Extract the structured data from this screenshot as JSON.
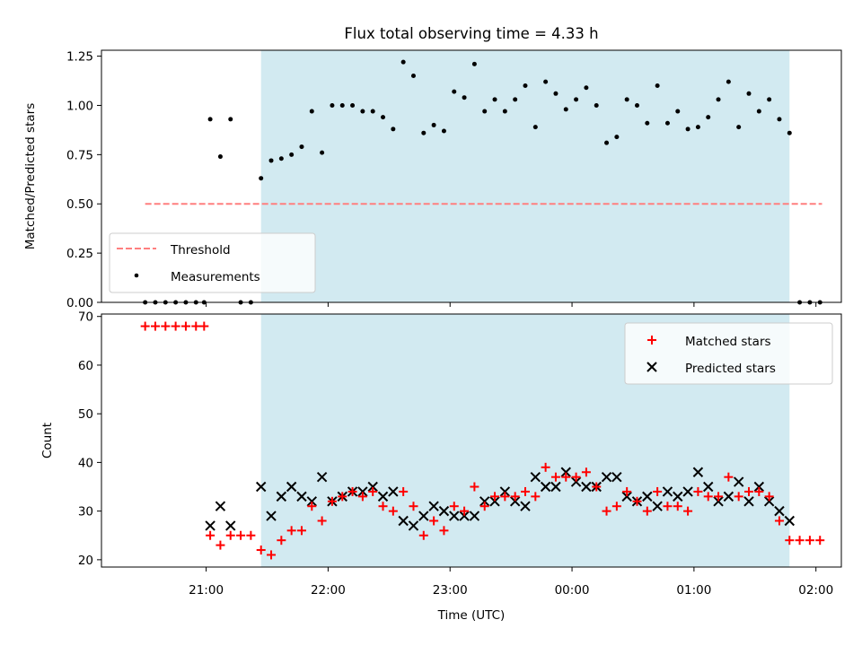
{
  "chart_data": [
    {
      "type": "scatter",
      "title": "Flux total observing time = 4.33 h",
      "xlabel": "",
      "ylabel": "Matched/Predicted stars",
      "ylim": [
        0,
        1.28
      ],
      "yticks": [
        0.0,
        0.25,
        0.5,
        0.75,
        1.0,
        1.25
      ],
      "ytick_labels": [
        "0.00",
        "0.25",
        "0.50",
        "0.75",
        "1.00",
        "1.25"
      ],
      "grid": false,
      "legend_position": "lower-left",
      "shaded_span": {
        "start": "21:27",
        "end": "01:47",
        "color": "#add8e6"
      },
      "series": [
        {
          "name": "Threshold",
          "style": "dashed-line",
          "color": "#ff7f7f",
          "x": [
            "20:30",
            "02:03"
          ],
          "y": [
            0.5,
            0.5
          ]
        },
        {
          "name": "Measurements",
          "style": "dot",
          "color": "#000000",
          "x": [
            "20:30",
            "20:35",
            "20:40",
            "20:45",
            "20:50",
            "20:55",
            "20:59",
            "21:02",
            "21:07",
            "21:12",
            "21:17",
            "21:22",
            "21:27",
            "21:32",
            "21:37",
            "21:42",
            "21:47",
            "21:52",
            "21:57",
            "22:02",
            "22:07",
            "22:12",
            "22:17",
            "22:22",
            "22:27",
            "22:32",
            "22:37",
            "22:42",
            "22:47",
            "22:52",
            "22:57",
            "23:02",
            "23:07",
            "23:12",
            "23:17",
            "23:22",
            "23:27",
            "23:32",
            "23:37",
            "23:42",
            "23:47",
            "23:52",
            "23:57",
            "00:02",
            "00:07",
            "00:12",
            "00:17",
            "00:22",
            "00:27",
            "00:32",
            "00:37",
            "00:42",
            "00:47",
            "00:52",
            "00:57",
            "01:02",
            "01:07",
            "01:12",
            "01:17",
            "01:22",
            "01:27",
            "01:32",
            "01:37",
            "01:42",
            "01:47",
            "01:52",
            "01:57",
            "02:02"
          ],
          "y": [
            0,
            0,
            0,
            0,
            0,
            0,
            0,
            0.93,
            0.74,
            0.93,
            0,
            0,
            0.63,
            0.72,
            0.73,
            0.75,
            0.79,
            0.97,
            0.76,
            1.0,
            1.0,
            1.0,
            0.97,
            0.97,
            0.94,
            0.88,
            1.22,
            1.15,
            0.86,
            0.9,
            0.87,
            1.07,
            1.04,
            1.21,
            0.97,
            1.03,
            0.97,
            1.03,
            1.1,
            0.89,
            1.12,
            1.06,
            0.98,
            1.03,
            1.09,
            1.0,
            0.81,
            0.84,
            1.03,
            1.0,
            0.91,
            1.1,
            0.91,
            0.97,
            0.88,
            0.89,
            0.94,
            1.03,
            1.12,
            0.89,
            1.06,
            0.97,
            1.03,
            0.93,
            0.86,
            0,
            0,
            0
          ]
        }
      ]
    },
    {
      "type": "scatter",
      "title": "",
      "xlabel": "Time (UTC)",
      "ylabel": "Count",
      "ylim": [
        18.5,
        70.5
      ],
      "yticks": [
        20,
        30,
        40,
        50,
        60,
        70
      ],
      "ytick_labels": [
        "20",
        "30",
        "40",
        "50",
        "60",
        "70"
      ],
      "xticks": [
        "21:00",
        "22:00",
        "23:00",
        "00:00",
        "01:00",
        "02:00"
      ],
      "grid": false,
      "legend_position": "upper-right",
      "shaded_span": {
        "start": "21:27",
        "end": "01:47",
        "color": "#add8e6"
      },
      "series": [
        {
          "name": "Matched stars",
          "style": "plus",
          "color": "#ff0000",
          "x": [
            "20:30",
            "20:35",
            "20:40",
            "20:45",
            "20:50",
            "20:55",
            "20:59",
            "21:02",
            "21:07",
            "21:12",
            "21:17",
            "21:22",
            "21:27",
            "21:32",
            "21:37",
            "21:42",
            "21:47",
            "21:52",
            "21:57",
            "22:02",
            "22:07",
            "22:12",
            "22:17",
            "22:22",
            "22:27",
            "22:32",
            "22:37",
            "22:42",
            "22:47",
            "22:52",
            "22:57",
            "23:02",
            "23:07",
            "23:12",
            "23:17",
            "23:22",
            "23:27",
            "23:32",
            "23:37",
            "23:42",
            "23:47",
            "23:52",
            "23:57",
            "00:02",
            "00:07",
            "00:12",
            "00:17",
            "00:22",
            "00:27",
            "00:32",
            "00:37",
            "00:42",
            "00:47",
            "00:52",
            "00:57",
            "01:02",
            "01:07",
            "01:12",
            "01:17",
            "01:22",
            "01:27",
            "01:32",
            "01:37",
            "01:42",
            "01:47",
            "01:52",
            "01:57",
            "02:02"
          ],
          "y": [
            68,
            68,
            68,
            68,
            68,
            68,
            68,
            25,
            23,
            25,
            25,
            25,
            22,
            21,
            24,
            26,
            26,
            31,
            28,
            32,
            33,
            34,
            33,
            34,
            31,
            30,
            34,
            31,
            25,
            28,
            26,
            31,
            30,
            35,
            31,
            33,
            33,
            33,
            34,
            33,
            39,
            37,
            37,
            37,
            38,
            35,
            30,
            31,
            34,
            32,
            30,
            34,
            31,
            31,
            30,
            34,
            33,
            33,
            37,
            33,
            34,
            34,
            33,
            28,
            24,
            24,
            24,
            24
          ]
        },
        {
          "name": "Predicted stars",
          "style": "x",
          "color": "#000000",
          "x": [
            "21:02",
            "21:07",
            "21:12",
            "21:27",
            "21:32",
            "21:37",
            "21:42",
            "21:47",
            "21:52",
            "21:57",
            "22:02",
            "22:07",
            "22:12",
            "22:17",
            "22:22",
            "22:27",
            "22:32",
            "22:37",
            "22:42",
            "22:47",
            "22:52",
            "22:57",
            "23:02",
            "23:07",
            "23:12",
            "23:17",
            "23:22",
            "23:27",
            "23:32",
            "23:37",
            "23:42",
            "23:47",
            "23:52",
            "23:57",
            "00:02",
            "00:07",
            "00:12",
            "00:17",
            "00:22",
            "00:27",
            "00:32",
            "00:37",
            "00:42",
            "00:47",
            "00:52",
            "00:57",
            "01:02",
            "01:07",
            "01:12",
            "01:17",
            "01:22",
            "01:27",
            "01:32",
            "01:37",
            "01:42",
            "01:47"
          ],
          "y": [
            27,
            31,
            27,
            35,
            29,
            33,
            35,
            33,
            32,
            37,
            32,
            33,
            34,
            34,
            35,
            33,
            34,
            28,
            27,
            29,
            31,
            30,
            29,
            29,
            29,
            32,
            32,
            34,
            32,
            31,
            37,
            35,
            35,
            38,
            36,
            35,
            35,
            37,
            37,
            33,
            32,
            33,
            31,
            34,
            33,
            34,
            38,
            35,
            32,
            33,
            36,
            32,
            35,
            32,
            30,
            28
          ]
        }
      ]
    }
  ]
}
